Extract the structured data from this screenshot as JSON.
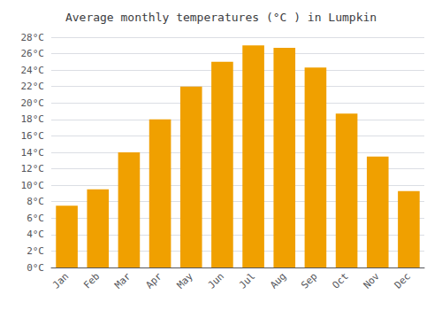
{
  "chart_data": {
    "type": "bar",
    "title": "Average monthly temperatures (°C ) in Lumpkin",
    "categories": [
      "Jan",
      "Feb",
      "Mar",
      "Apr",
      "May",
      "Jun",
      "Jul",
      "Aug",
      "Sep",
      "Oct",
      "Nov",
      "Dec"
    ],
    "values": [
      7.5,
      9.5,
      14.0,
      18.0,
      22.0,
      25.0,
      27.0,
      26.7,
      24.3,
      18.7,
      13.5,
      9.3
    ],
    "color": "#F0A000",
    "ylim": [
      0,
      28
    ],
    "yticks": [
      {
        "value": 0,
        "label": "0°C"
      },
      {
        "value": 2,
        "label": "2°C"
      },
      {
        "value": 4,
        "label": "4°C"
      },
      {
        "value": 6,
        "label": "6°C"
      },
      {
        "value": 8,
        "label": "8°C"
      },
      {
        "value": 10,
        "label": "10°C"
      },
      {
        "value": 12,
        "label": "12°C"
      },
      {
        "value": 14,
        "label": "14°C"
      },
      {
        "value": 16,
        "label": "16°C"
      },
      {
        "value": 18,
        "label": "18°C"
      },
      {
        "value": 20,
        "label": "20°C"
      },
      {
        "value": 22,
        "label": "22°C"
      },
      {
        "value": 24,
        "label": "24°C"
      },
      {
        "value": 26,
        "label": "26°C"
      },
      {
        "value": 28,
        "label": "28°C"
      }
    ],
    "grid": true
  }
}
